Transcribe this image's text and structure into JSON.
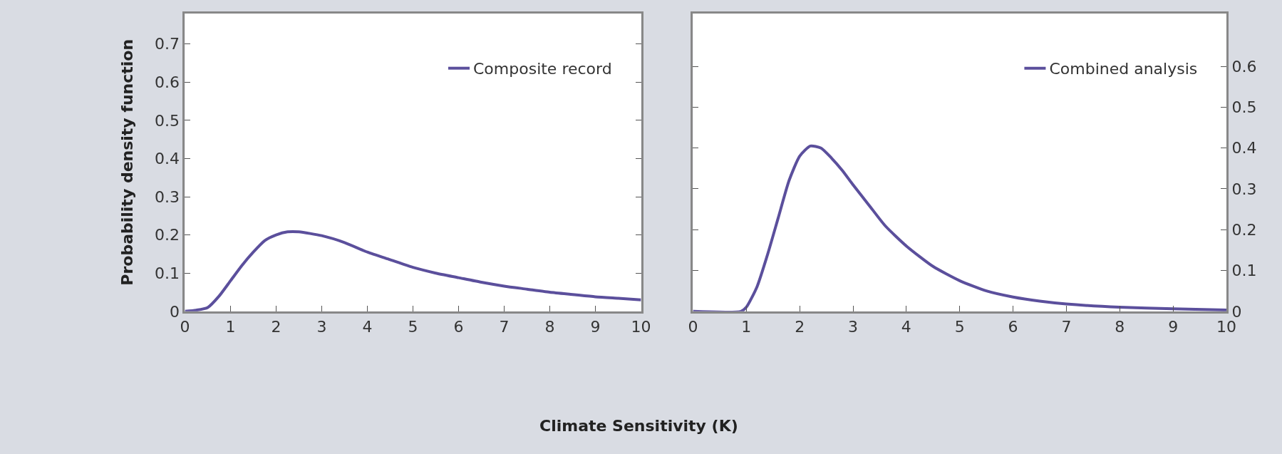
{
  "chart_data": [
    {
      "type": "line",
      "xlabel": "Climate Sensitivity (K)",
      "ylabel": "Probability density function",
      "xlim": [
        0,
        10
      ],
      "xticks": [
        0,
        1,
        2,
        3,
        4,
        5,
        6,
        7,
        8,
        9,
        10
      ],
      "ylim": [
        0,
        0.78
      ],
      "yticks": [
        0,
        0.1,
        0.2,
        0.3,
        0.4,
        0.5,
        0.6,
        0.7
      ],
      "legend": "top right",
      "series": [
        {
          "name": "Composite record",
          "color": "#5b4f9c",
          "x": [
            0,
            0.25,
            0.5,
            0.75,
            1,
            1.25,
            1.5,
            1.75,
            2,
            2.25,
            2.5,
            3,
            3.5,
            4,
            4.5,
            5,
            5.5,
            6,
            6.5,
            7,
            7.5,
            8,
            8.5,
            9,
            9.5,
            10
          ],
          "values": [
            0,
            0.003,
            0.01,
            0.04,
            0.08,
            0.12,
            0.155,
            0.185,
            0.2,
            0.208,
            0.208,
            0.198,
            0.18,
            0.155,
            0.135,
            0.115,
            0.1,
            0.088,
            0.076,
            0.066,
            0.058,
            0.05,
            0.044,
            0.038,
            0.034,
            0.03
          ]
        }
      ]
    },
    {
      "type": "line",
      "xlim": [
        0,
        10
      ],
      "xticks": [
        0,
        1,
        2,
        3,
        4,
        5,
        6,
        7,
        8,
        9,
        10
      ],
      "y2lim": [
        0,
        0.73
      ],
      "y2ticks": [
        0,
        0.1,
        0.2,
        0.3,
        0.4,
        0.5,
        0.6
      ],
      "legend": "top right",
      "series": [
        {
          "name": "Combined analysis",
          "color": "#5b4f9c",
          "axis": "y2",
          "x": [
            0,
            0.9,
            1,
            1.2,
            1.4,
            1.6,
            1.8,
            2,
            2.2,
            2.4,
            2.6,
            2.8,
            3,
            3.3,
            3.6,
            4,
            4.5,
            5,
            5.5,
            6,
            6.5,
            7,
            8,
            9,
            10
          ],
          "values": [
            0,
            0,
            0.01,
            0.06,
            0.14,
            0.23,
            0.32,
            0.38,
            0.405,
            0.4,
            0.375,
            0.345,
            0.31,
            0.26,
            0.21,
            0.16,
            0.11,
            0.075,
            0.05,
            0.035,
            0.025,
            0.018,
            0.01,
            0.006,
            0.003
          ]
        }
      ]
    }
  ]
}
